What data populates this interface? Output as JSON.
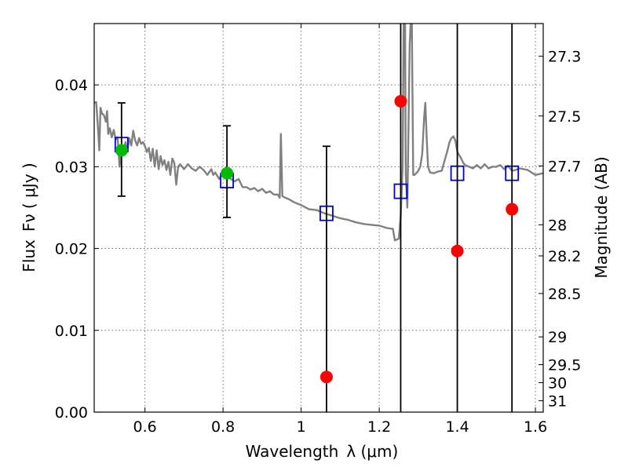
{
  "chart_data": {
    "type": "scatter",
    "title": "",
    "xlabel": "Wavelength",
    "xlabel_symbol": "λ (μm)",
    "ylabel": "Flux",
    "ylabel_symbol": "Fν ( μJy )",
    "y2label": "Magnitude (AB)",
    "xlim": [
      0.47,
      1.62
    ],
    "ylim": [
      0.0,
      0.0475
    ],
    "grid": true,
    "legend": "none",
    "colors": {
      "model": "#808080",
      "model_points": "#0000cc",
      "detections": "#00bb00",
      "nondetections": "#ff0000",
      "errorbars": "#000000"
    },
    "x_ticks": [
      0.6,
      0.8,
      1.0,
      1.2,
      1.4,
      1.6
    ],
    "x_tick_labels": [
      "0.6",
      "0.8",
      "1",
      "1.2",
      "1.4",
      "1.6"
    ],
    "y_ticks": [
      0.0,
      0.01,
      0.02,
      0.03,
      0.04
    ],
    "y_tick_labels": [
      "0.00",
      "0.01",
      "0.02",
      "0.03",
      "0.04"
    ],
    "y2_ticks": [
      {
        "label": "27.3",
        "flux": 0.0435
      },
      {
        "label": "27.5",
        "flux": 0.0362
      },
      {
        "label": "27.7",
        "flux": 0.0301
      },
      {
        "label": "28",
        "flux": 0.0229
      },
      {
        "label": "28.2",
        "flux": 0.0191
      },
      {
        "label": "28.5",
        "flux": 0.0145
      },
      {
        "label": "29",
        "flux": 0.0092
      },
      {
        "label": "29.5",
        "flux": 0.0058
      },
      {
        "label": "30",
        "flux": 0.0036
      },
      {
        "label": "31",
        "flux": 0.0014
      }
    ],
    "series": [
      {
        "kind": "line",
        "points": [
          [
            0.47,
            0.0378
          ],
          [
            0.475,
            0.0379
          ],
          [
            0.48,
            0.0345
          ],
          [
            0.483,
            0.032
          ],
          [
            0.486,
            0.0372
          ],
          [
            0.49,
            0.0365
          ],
          [
            0.495,
            0.0363
          ],
          [
            0.5,
            0.0355
          ],
          [
            0.503,
            0.0368
          ],
          [
            0.506,
            0.034
          ],
          [
            0.51,
            0.0347
          ],
          [
            0.515,
            0.0336
          ],
          [
            0.52,
            0.0345
          ],
          [
            0.525,
            0.0333
          ],
          [
            0.53,
            0.0336
          ],
          [
            0.535,
            0.03
          ],
          [
            0.54,
            0.0325
          ],
          [
            0.545,
            0.0316
          ],
          [
            0.55,
            0.033
          ],
          [
            0.555,
            0.032
          ],
          [
            0.56,
            0.0335
          ],
          [
            0.565,
            0.0326
          ],
          [
            0.57,
            0.0344
          ],
          [
            0.575,
            0.0332
          ],
          [
            0.58,
            0.0326
          ],
          [
            0.585,
            0.0335
          ],
          [
            0.59,
            0.0328
          ],
          [
            0.595,
            0.033
          ],
          [
            0.6,
            0.0325
          ],
          [
            0.605,
            0.0318
          ],
          [
            0.61,
            0.0323
          ],
          [
            0.615,
            0.0307
          ],
          [
            0.62,
            0.0322
          ],
          [
            0.625,
            0.03
          ],
          [
            0.63,
            0.032
          ],
          [
            0.635,
            0.0297
          ],
          [
            0.64,
            0.0313
          ],
          [
            0.645,
            0.0302
          ],
          [
            0.65,
            0.0308
          ],
          [
            0.655,
            0.0296
          ],
          [
            0.66,
            0.0306
          ],
          [
            0.665,
            0.029
          ],
          [
            0.67,
            0.031
          ],
          [
            0.675,
            0.0305
          ],
          [
            0.68,
            0.0278
          ],
          [
            0.685,
            0.03
          ],
          [
            0.69,
            0.0303
          ],
          [
            0.695,
            0.03
          ],
          [
            0.7,
            0.0297
          ],
          [
            0.71,
            0.0303
          ],
          [
            0.72,
            0.0298
          ],
          [
            0.73,
            0.0295
          ],
          [
            0.74,
            0.03
          ],
          [
            0.75,
            0.0296
          ],
          [
            0.76,
            0.029
          ],
          [
            0.77,
            0.0297
          ],
          [
            0.775,
            0.029
          ],
          [
            0.78,
            0.0293
          ],
          [
            0.79,
            0.0285
          ],
          [
            0.8,
            0.0293
          ],
          [
            0.81,
            0.029
          ],
          [
            0.82,
            0.0285
          ],
          [
            0.83,
            0.0282
          ],
          [
            0.84,
            0.0285
          ],
          [
            0.85,
            0.0275
          ],
          [
            0.86,
            0.0275
          ],
          [
            0.87,
            0.0272
          ],
          [
            0.88,
            0.0274
          ],
          [
            0.89,
            0.027
          ],
          [
            0.9,
            0.0273
          ],
          [
            0.91,
            0.0268
          ],
          [
            0.92,
            0.027
          ],
          [
            0.93,
            0.0266
          ],
          [
            0.94,
            0.0266
          ],
          [
            0.945,
            0.0262
          ],
          [
            0.948,
            0.034
          ],
          [
            0.952,
            0.0264
          ],
          [
            0.96,
            0.0262
          ],
          [
            0.97,
            0.026
          ],
          [
            0.98,
            0.0257
          ],
          [
            0.99,
            0.0255
          ],
          [
            1.0,
            0.0253
          ],
          [
            1.02,
            0.0248
          ],
          [
            1.04,
            0.0247
          ],
          [
            1.06,
            0.0243
          ],
          [
            1.08,
            0.024
          ],
          [
            1.1,
            0.0237
          ],
          [
            1.12,
            0.0235
          ],
          [
            1.14,
            0.0232
          ],
          [
            1.16,
            0.023
          ],
          [
            1.18,
            0.0229
          ],
          [
            1.2,
            0.0228
          ],
          [
            1.22,
            0.0225
          ],
          [
            1.235,
            0.0224
          ],
          [
            1.24,
            0.021
          ],
          [
            1.25,
            0.0212
          ],
          [
            1.255,
            0.024
          ],
          [
            1.26,
            0.03
          ],
          [
            1.263,
            0.05
          ],
          [
            1.266,
            0.05
          ],
          [
            1.268,
            0.029
          ],
          [
            1.272,
            0.025
          ],
          [
            1.278,
            0.045
          ],
          [
            1.283,
            0.05
          ],
          [
            1.287,
            0.029
          ],
          [
            1.29,
            0.029
          ],
          [
            1.295,
            0.0292
          ],
          [
            1.3,
            0.0295
          ],
          [
            1.305,
            0.03
          ],
          [
            1.31,
            0.0315
          ],
          [
            1.315,
            0.036
          ],
          [
            1.318,
            0.0378
          ],
          [
            1.322,
            0.033
          ],
          [
            1.325,
            0.03
          ],
          [
            1.33,
            0.0293
          ],
          [
            1.34,
            0.0292
          ],
          [
            1.35,
            0.0294
          ],
          [
            1.36,
            0.0295
          ],
          [
            1.37,
            0.0312
          ],
          [
            1.375,
            0.032
          ],
          [
            1.38,
            0.033
          ],
          [
            1.385,
            0.0335
          ],
          [
            1.39,
            0.0337
          ],
          [
            1.395,
            0.0332
          ],
          [
            1.4,
            0.0318
          ],
          [
            1.41,
            0.031
          ],
          [
            1.415,
            0.0305
          ],
          [
            1.42,
            0.0302
          ],
          [
            1.43,
            0.03
          ],
          [
            1.44,
            0.0298
          ],
          [
            1.45,
            0.0302
          ],
          [
            1.46,
            0.0298
          ],
          [
            1.47,
            0.0303
          ],
          [
            1.48,
            0.0298
          ],
          [
            1.49,
            0.03
          ],
          [
            1.5,
            0.03
          ],
          [
            1.51,
            0.0302
          ],
          [
            1.52,
            0.0297
          ],
          [
            1.53,
            0.0301
          ],
          [
            1.54,
            0.0295
          ],
          [
            1.55,
            0.0296
          ],
          [
            1.56,
            0.0298
          ],
          [
            1.57,
            0.0297
          ],
          [
            1.58,
            0.0296
          ],
          [
            1.59,
            0.0293
          ],
          [
            1.6,
            0.029
          ],
          [
            1.62,
            0.0292
          ]
        ]
      },
      {
        "kind": "open-square",
        "points": [
          [
            0.54,
            0.0327
          ],
          [
            0.81,
            0.0283
          ],
          [
            1.065,
            0.0243
          ],
          [
            1.255,
            0.027
          ],
          [
            1.4,
            0.0292
          ],
          [
            1.54,
            0.0292
          ]
        ]
      },
      {
        "kind": "filled-circle",
        "points": [
          [
            0.54,
            0.032
          ],
          [
            0.81,
            0.0292
          ]
        ],
        "errors": [
          [
            0.0264,
            0.0378
          ],
          [
            0.0238,
            0.035
          ]
        ]
      },
      {
        "kind": "filled-circle",
        "points": [
          [
            1.065,
            0.0043
          ],
          [
            1.255,
            0.038
          ],
          [
            1.4,
            0.0197
          ],
          [
            1.54,
            0.0248
          ]
        ],
        "errors": [
          [
            0.0,
            0.0325
          ],
          [
            0.0,
            0.0475
          ],
          [
            0.0,
            0.0475
          ],
          [
            0.0,
            0.0475
          ]
        ]
      }
    ]
  }
}
